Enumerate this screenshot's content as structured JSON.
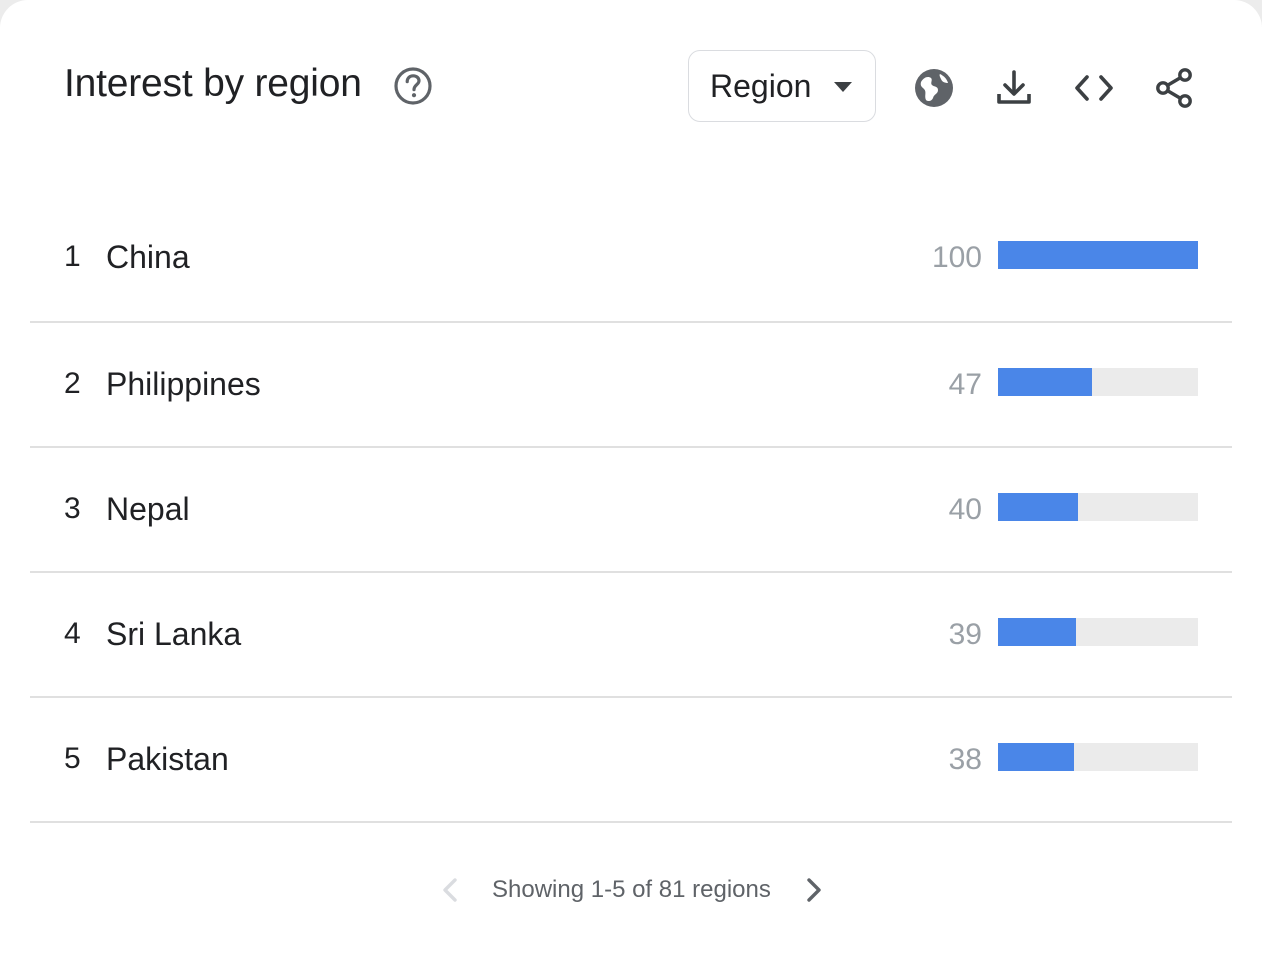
{
  "widget": {
    "title": "Interest by region",
    "help_icon": "help-circle-icon",
    "resolution_select": {
      "selected": "Region"
    },
    "toolbar": [
      {
        "name": "globe-icon"
      },
      {
        "name": "download-icon"
      },
      {
        "name": "embed-code-icon"
      },
      {
        "name": "share-icon"
      }
    ]
  },
  "colors": {
    "bar_fill": "#4a86e8",
    "bar_track": "#ebebeb",
    "value_text": "#9aa0a6"
  },
  "rows": [
    {
      "rank": "1",
      "name": "China",
      "value": "100",
      "fraction": 1.0
    },
    {
      "rank": "2",
      "name": "Philippines",
      "value": "47",
      "fraction": 0.47
    },
    {
      "rank": "3",
      "name": "Nepal",
      "value": "40",
      "fraction": 0.4
    },
    {
      "rank": "4",
      "name": "Sri Lanka",
      "value": "39",
      "fraction": 0.39
    },
    {
      "rank": "5",
      "name": "Pakistan",
      "value": "38",
      "fraction": 0.38
    }
  ],
  "pagination": {
    "text": "Showing 1-5 of 81 regions",
    "prev_icon": "chevron-left-icon",
    "next_icon": "chevron-right-icon",
    "prev_enabled": false,
    "next_enabled": true
  }
}
